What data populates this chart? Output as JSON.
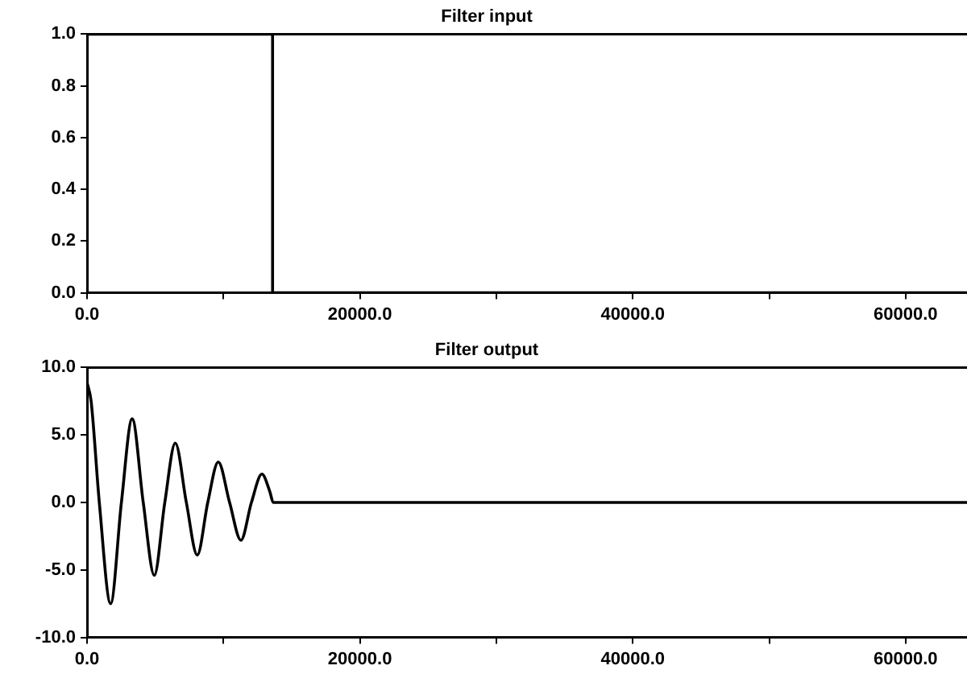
{
  "chart_data": [
    {
      "type": "line",
      "title": "Filter input",
      "x": [
        0,
        13600,
        13600,
        64500
      ],
      "series": [
        {
          "color": "#000000",
          "values": [
            1,
            1,
            0,
            0
          ]
        }
      ],
      "xlim": [
        0,
        64500
      ],
      "ylim": [
        0,
        1
      ],
      "xticks": [
        {
          "value": 0,
          "label": "0.0"
        },
        {
          "value": 10000,
          "label": null
        },
        {
          "value": 20000,
          "label": "20000.0"
        },
        {
          "value": 30000,
          "label": null
        },
        {
          "value": 40000,
          "label": "40000.0"
        },
        {
          "value": 50000,
          "label": null
        },
        {
          "value": 60000,
          "label": "60000.0"
        }
      ],
      "yticks": [
        {
          "value": 0,
          "label": "0.0"
        },
        {
          "value": 0.2,
          "label": "0.2"
        },
        {
          "value": 0.4,
          "label": "0.4"
        },
        {
          "value": 0.6,
          "label": "0.6"
        },
        {
          "value": 0.8,
          "label": "0.8"
        },
        {
          "value": 1,
          "label": "1.0"
        }
      ],
      "grid": false,
      "legend": false,
      "marker": "none",
      "line_style": "solid"
    },
    {
      "type": "line",
      "title": "Filter output",
      "x": [
        0,
        300,
        900,
        1730,
        2520,
        3310,
        4120,
        4930,
        5700,
        6470,
        7280,
        8080,
        8850,
        9620,
        10450,
        11280,
        12050,
        12820,
        13400,
        13650,
        64500
      ],
      "series": [
        {
          "color": "#000000",
          "values": [
            8.9,
            7.5,
            0,
            -7.5,
            0,
            6.2,
            0,
            -5.4,
            0,
            4.4,
            0,
            -3.9,
            0,
            3.0,
            0,
            -2.8,
            0,
            2.1,
            0.8,
            0,
            0
          ]
        }
      ],
      "xlim": [
        0,
        64500
      ],
      "ylim": [
        -10,
        10
      ],
      "xticks": [
        {
          "value": 0,
          "label": "0.0"
        },
        {
          "value": 10000,
          "label": null
        },
        {
          "value": 20000,
          "label": "20000.0"
        },
        {
          "value": 30000,
          "label": null
        },
        {
          "value": 40000,
          "label": "40000.0"
        },
        {
          "value": 50000,
          "label": null
        },
        {
          "value": 60000,
          "label": "60000.0"
        }
      ],
      "yticks": [
        {
          "value": -10,
          "label": "-10.0"
        },
        {
          "value": -5,
          "label": "-5.0"
        },
        {
          "value": 0,
          "label": "0.0"
        },
        {
          "value": 5,
          "label": "5.0"
        },
        {
          "value": 10,
          "label": "10.0"
        }
      ],
      "grid": false,
      "legend": false,
      "marker": "none",
      "line_style": "solid"
    }
  ]
}
